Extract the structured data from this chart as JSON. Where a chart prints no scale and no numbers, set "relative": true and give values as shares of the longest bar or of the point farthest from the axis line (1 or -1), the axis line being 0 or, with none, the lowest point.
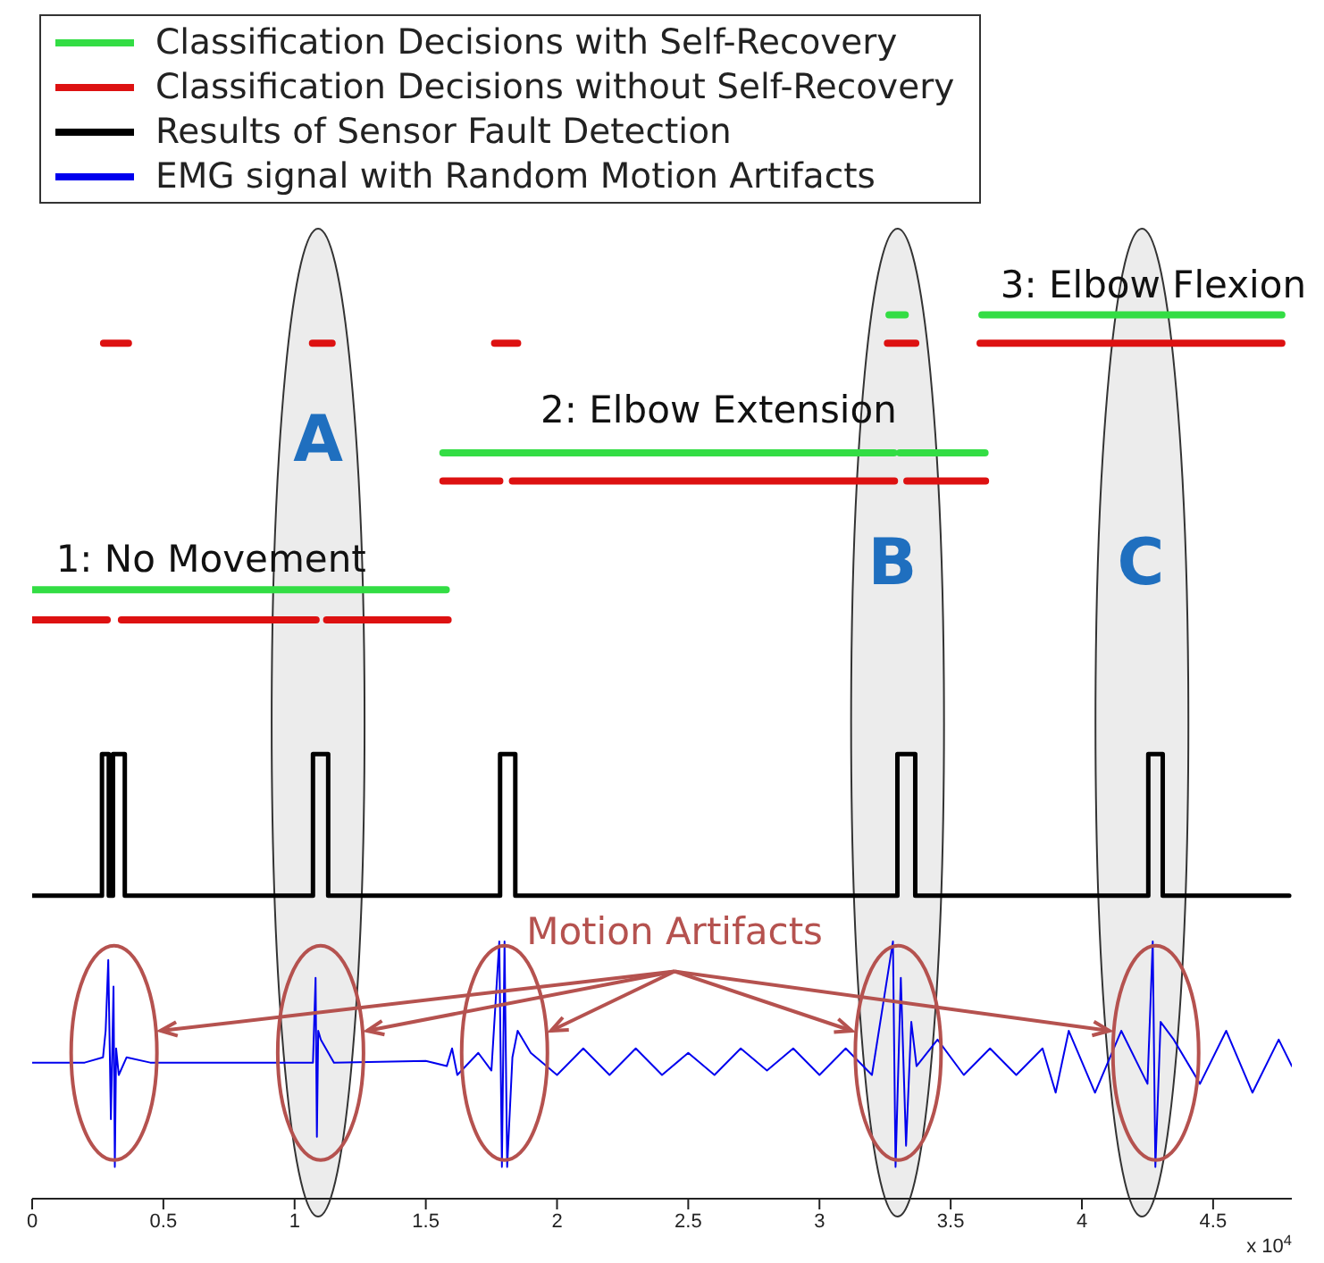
{
  "chart_data": {
    "type": "line",
    "relative": true,
    "legend": "top left",
    "tick_labels": "x",
    "xlim": [
      0,
      4.8
    ],
    "xticks": [
      0,
      0.5,
      1,
      1.5,
      2,
      2.5,
      3,
      3.5,
      4,
      4.5
    ],
    "series": [
      {
        "name": "Classification Decisions with Self-Recovery",
        "color": "#33dd44",
        "x": [
          0,
          1.578,
          1.57,
          1.565,
          3.284,
          3.295,
          3.306,
          3.631,
          3.4,
          3.265,
          3.327,
          3.45,
          3.619,
          4.762
        ],
        "values": [
          0.689,
          0.689,
          null,
          0.844,
          0.844,
          null,
          0.844,
          0.844,
          null,
          1,
          1,
          null,
          1,
          1
        ]
      },
      {
        "name": "Classification Decisions without Self-Recovery",
        "color": "#dd1111",
        "x": [
          0,
          0.286,
          0.31,
          0.34,
          1.082,
          1.1,
          1.122,
          1.585,
          1.57,
          1.565,
          1.782,
          1.8,
          1.83,
          3.286,
          3.31,
          3.333,
          3.633,
          2,
          0.272,
          0.367,
          0.7,
          1.068,
          1.143,
          1.4,
          1.762,
          1.85,
          2.5,
          3.259,
          3.367,
          3.5,
          3.612,
          4.762
        ],
        "values": [
          0.655,
          0.655,
          null,
          0.655,
          0.655,
          null,
          0.655,
          0.655,
          null,
          0.812,
          0.812,
          null,
          0.812,
          0.812,
          null,
          0.812,
          0.812,
          null,
          0.968,
          0.968,
          null,
          0.968,
          0.968,
          null,
          0.968,
          0.968,
          null,
          0.968,
          0.968,
          null,
          0.968,
          0.968
        ]
      },
      {
        "name": "Results of Sensor Fault Detection",
        "color": "#000000",
        "type": "step",
        "x": [
          0,
          0.266,
          0.292,
          0.308,
          0.353,
          1.07,
          1.128,
          1.783,
          1.841,
          3.297,
          3.365,
          4.253,
          4.308,
          4.79
        ],
        "values": [
          0.343,
          0.503,
          0.343,
          0.503,
          0.343,
          0.503,
          0.343,
          0.503,
          0.343,
          0.503,
          0.343,
          0.503,
          0.343,
          0.343
        ]
      },
      {
        "name": "EMG signal with Random Motion Artifacts",
        "color": "#0000ee",
        "x": [
          0,
          0.2,
          0.27,
          0.28,
          0.29,
          0.3,
          0.31,
          0.315,
          0.32,
          0.33,
          0.36,
          0.45,
          0.8,
          1.07,
          1.08,
          1.085,
          1.09,
          1.1,
          1.15,
          1.5,
          1.58,
          1.6,
          1.62,
          1.7,
          1.75,
          1.78,
          1.79,
          1.8,
          1.81,
          1.83,
          1.85,
          1.9,
          2,
          2.1,
          2.2,
          2.3,
          2.4,
          2.5,
          2.6,
          2.7,
          2.8,
          2.9,
          3,
          3.1,
          3.2,
          3.28,
          3.29,
          3.31,
          3.33,
          3.35,
          3.37,
          3.45,
          3.55,
          3.65,
          3.75,
          3.85,
          3.9,
          3.95,
          4.05,
          4.15,
          4.25,
          4.27,
          4.28,
          4.3,
          4.35,
          4.45,
          4.55,
          4.65,
          4.75,
          4.8
        ],
        "values": [
          0.154,
          0.154,
          0.16,
          0.19,
          0.27,
          0.09,
          0.24,
          0.036,
          0.17,
          0.14,
          0.16,
          0.154,
          0.154,
          0.154,
          0.25,
          0.07,
          0.19,
          0.18,
          0.154,
          0.156,
          0.15,
          0.17,
          0.14,
          0.165,
          0.145,
          0.291,
          0.036,
          0.291,
          0.036,
          0.16,
          0.19,
          0.165,
          0.14,
          0.17,
          0.14,
          0.17,
          0.14,
          0.165,
          0.14,
          0.17,
          0.145,
          0.17,
          0.14,
          0.17,
          0.14,
          0.291,
          0.036,
          0.25,
          0.06,
          0.2,
          0.15,
          0.18,
          0.14,
          0.17,
          0.14,
          0.17,
          0.12,
          0.19,
          0.12,
          0.19,
          0.13,
          0.291,
          0.036,
          0.2,
          0.18,
          0.13,
          0.19,
          0.12,
          0.18,
          0.15
        ]
      }
    ],
    "annotations": [
      "1: No Movement",
      "2: Elbow Extension",
      "3: Elbow Flexion",
      "A",
      "B",
      "C",
      "Motion Artifacts",
      "x 10$^{4}$"
    ]
  }
}
